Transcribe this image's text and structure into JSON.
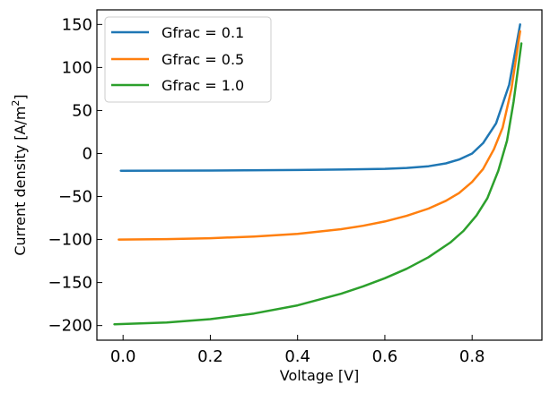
{
  "chart_data": {
    "type": "line",
    "title": "",
    "xlabel": "Voltage [V]",
    "ylabel_main": "Current density [A/m",
    "ylabel_sup": "2",
    "ylabel_end": "]",
    "xlim": [
      -0.06,
      0.96
    ],
    "ylim": [
      -217,
      167
    ],
    "x_ticks": [
      0.0,
      0.2,
      0.4,
      0.6,
      0.8
    ],
    "x_tick_labels": [
      "0.0",
      "0.2",
      "0.4",
      "0.6",
      "0.8"
    ],
    "y_ticks": [
      -200,
      -150,
      -100,
      -50,
      0,
      50,
      100,
      150
    ],
    "y_tick_labels": [
      "−200",
      "−150",
      "−100",
      "−50",
      "0",
      "50",
      "100",
      "150"
    ],
    "legend_position": "top-left",
    "series": [
      {
        "name": "Gfrac = 0.1",
        "color": "#1f77b4",
        "points": [
          [
            -0.005,
            -20
          ],
          [
            0.2,
            -19.8
          ],
          [
            0.4,
            -19.2
          ],
          [
            0.5,
            -18.7
          ],
          [
            0.6,
            -17.8
          ],
          [
            0.65,
            -16.8
          ],
          [
            0.7,
            -14.8
          ],
          [
            0.74,
            -11.5
          ],
          [
            0.77,
            -7
          ],
          [
            0.8,
            0
          ],
          [
            0.825,
            12
          ],
          [
            0.855,
            35
          ],
          [
            0.885,
            80
          ],
          [
            0.91,
            150
          ]
        ]
      },
      {
        "name": "Gfrac = 0.5",
        "color": "#ff7f0e",
        "points": [
          [
            -0.01,
            -100
          ],
          [
            0.1,
            -99.5
          ],
          [
            0.2,
            -98.5
          ],
          [
            0.3,
            -96.5
          ],
          [
            0.4,
            -93.5
          ],
          [
            0.5,
            -88
          ],
          [
            0.55,
            -84
          ],
          [
            0.6,
            -79
          ],
          [
            0.65,
            -72.5
          ],
          [
            0.7,
            -64
          ],
          [
            0.74,
            -55
          ],
          [
            0.77,
            -46
          ],
          [
            0.8,
            -33
          ],
          [
            0.825,
            -18
          ],
          [
            0.85,
            5
          ],
          [
            0.87,
            30
          ],
          [
            0.89,
            75
          ],
          [
            0.91,
            142
          ]
        ]
      },
      {
        "name": "Gfrac = 1.0",
        "color": "#2ca02c",
        "points": [
          [
            -0.02,
            -198.5
          ],
          [
            0.1,
            -196.5
          ],
          [
            0.2,
            -192.5
          ],
          [
            0.3,
            -186
          ],
          [
            0.4,
            -176.5
          ],
          [
            0.5,
            -163
          ],
          [
            0.55,
            -154.5
          ],
          [
            0.6,
            -145
          ],
          [
            0.65,
            -134
          ],
          [
            0.7,
            -120.5
          ],
          [
            0.75,
            -103.5
          ],
          [
            0.78,
            -90
          ],
          [
            0.81,
            -72
          ],
          [
            0.835,
            -52
          ],
          [
            0.86,
            -20
          ],
          [
            0.88,
            15
          ],
          [
            0.895,
            60
          ],
          [
            0.913,
            128
          ]
        ]
      }
    ]
  }
}
